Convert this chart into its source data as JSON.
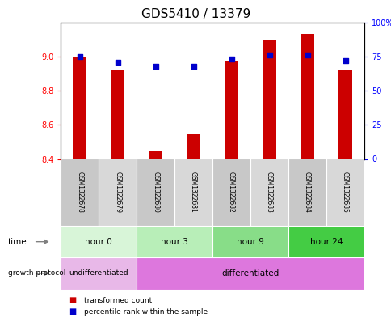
{
  "title": "GDS5410 / 13379",
  "samples": [
    "GSM1322678",
    "GSM1322679",
    "GSM1322680",
    "GSM1322681",
    "GSM1322682",
    "GSM1322683",
    "GSM1322684",
    "GSM1322685"
  ],
  "transformed_count": [
    9.0,
    8.92,
    8.45,
    8.55,
    8.97,
    9.1,
    9.13,
    8.92
  ],
  "percentile_rank": [
    75,
    71,
    68,
    68,
    73,
    76,
    76,
    72
  ],
  "ylim_left": [
    8.4,
    9.2
  ],
  "ylim_right": [
    0,
    100
  ],
  "yticks_left": [
    8.4,
    8.6,
    8.8,
    9.0
  ],
  "yticks_right": [
    0,
    25,
    50,
    75,
    100
  ],
  "ytick_labels_right": [
    "0",
    "25",
    "50",
    "75",
    "100%"
  ],
  "bar_color": "#cc0000",
  "scatter_color": "#0000cc",
  "time_groups": [
    {
      "label": "hour 0",
      "start": 0,
      "end": 2,
      "color": "#d8f5d8"
    },
    {
      "label": "hour 3",
      "start": 2,
      "end": 4,
      "color": "#b8eeb8"
    },
    {
      "label": "hour 9",
      "start": 4,
      "end": 6,
      "color": "#88dd88"
    },
    {
      "label": "hour 24",
      "start": 6,
      "end": 8,
      "color": "#44cc44"
    }
  ],
  "growth_groups": [
    {
      "label": "undifferentiated",
      "start": 0,
      "end": 2,
      "color": "#e8b8e8"
    },
    {
      "label": "differentiated",
      "start": 2,
      "end": 8,
      "color": "#dd77dd"
    }
  ],
  "legend_red_label": "transformed count",
  "legend_blue_label": "percentile rank within the sample",
  "bar_width": 0.35,
  "title_fontsize": 11,
  "tick_fontsize": 7,
  "sample_fontsize": 5.5,
  "row_fontsize": 7.5,
  "background_color": "#ffffff"
}
